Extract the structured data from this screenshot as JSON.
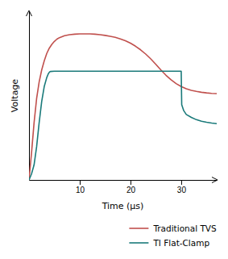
{
  "chart_data": {
    "type": "line",
    "xlabel": "Time (μs)",
    "ylabel": "Voltage",
    "xlim": [
      0,
      37
    ],
    "ylim": [
      0,
      1.12
    ],
    "xticks": [
      10,
      20,
      30
    ],
    "tick_labels": "x",
    "legend": "lower right",
    "series": [
      {
        "name": "Traditional TVS",
        "color": "#c0504d",
        "x": [
          0,
          0.5,
          1.0,
          1.5,
          2.0,
          2.5,
          3.0,
          3.5,
          4.0,
          4.5,
          5.0,
          5.5,
          6.0,
          7.0,
          8.0,
          9.0,
          10.0,
          11.0,
          12.0,
          13.0,
          14.0,
          15.0,
          16.0,
          17.0,
          18.0,
          19.0,
          20.0,
          21.0,
          22.0,
          23.0,
          24.0,
          25.0,
          26.0,
          27.0,
          28.0,
          29.0,
          30.0,
          31.0,
          32.0,
          33.0,
          34.0,
          35.0,
          36.0,
          37.0
        ],
        "values": [
          0,
          0.18,
          0.38,
          0.54,
          0.65,
          0.73,
          0.79,
          0.84,
          0.875,
          0.9,
          0.92,
          0.935,
          0.945,
          0.958,
          0.965,
          0.968,
          0.97,
          0.97,
          0.97,
          0.968,
          0.965,
          0.96,
          0.954,
          0.947,
          0.937,
          0.924,
          0.908,
          0.888,
          0.864,
          0.836,
          0.804,
          0.768,
          0.73,
          0.695,
          0.665,
          0.64,
          0.62,
          0.605,
          0.595,
          0.588,
          0.582,
          0.578,
          0.575,
          0.573
        ]
      },
      {
        "name": "TI Flat-Clamp",
        "color": "#1a7a7a",
        "x": [
          0,
          0.5,
          1.0,
          1.5,
          2.0,
          2.5,
          3.0,
          3.5,
          3.8,
          4.0,
          4.1,
          4.2,
          5.0,
          10.0,
          15.0,
          20.0,
          25.0,
          29.5,
          29.9,
          30.0,
          30.1,
          30.5,
          31.0,
          32.0,
          33.0,
          34.0,
          35.0,
          36.0,
          37.0
        ],
        "values": [
          0,
          0.04,
          0.1,
          0.22,
          0.38,
          0.52,
          0.62,
          0.68,
          0.705,
          0.715,
          0.718,
          0.72,
          0.722,
          0.722,
          0.722,
          0.722,
          0.722,
          0.722,
          0.722,
          0.722,
          0.5,
          0.46,
          0.435,
          0.415,
          0.4,
          0.39,
          0.383,
          0.378,
          0.374
        ]
      }
    ]
  }
}
